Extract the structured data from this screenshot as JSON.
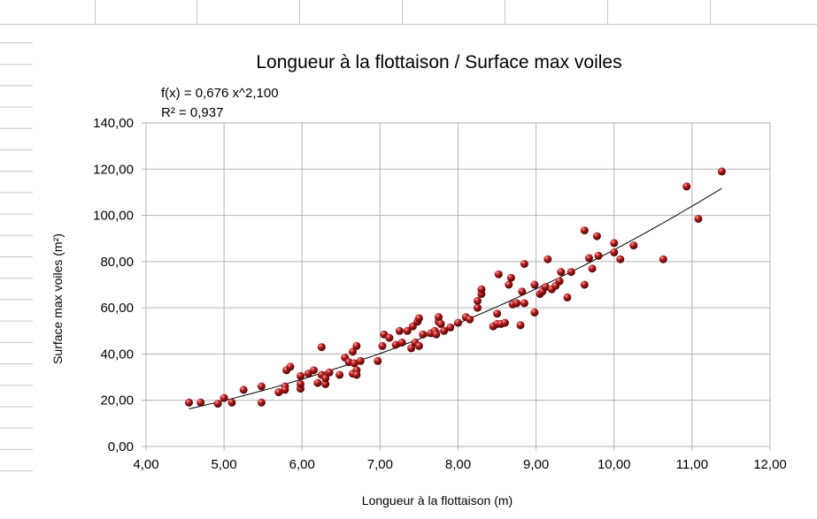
{
  "chart_data": {
    "type": "scatter",
    "title": "Longueur à la flottaison / Surface max voiles",
    "trendline": {
      "equation": "f(x) = 0,676 x^2,100",
      "r_squared": "R² = 0,937",
      "a": 0.676,
      "b": 2.1
    },
    "xlabel": "Longueur à la flottaison (m)",
    "ylabel": "Surface max voiles (m²)",
    "xlim": [
      4,
      12
    ],
    "ylim": [
      0,
      140
    ],
    "x_ticks": [
      "4,00",
      "5,00",
      "6,00",
      "7,00",
      "8,00",
      "9,00",
      "10,00",
      "11,00",
      "12,00"
    ],
    "y_ticks": [
      "0,00",
      "20,00",
      "40,00",
      "60,00",
      "80,00",
      "100,00",
      "120,00",
      "140,00"
    ],
    "grid": true,
    "point_color": "#b01818",
    "trend_color": "#000000",
    "points": [
      [
        4.55,
        19
      ],
      [
        4.7,
        19
      ],
      [
        4.92,
        18.5
      ],
      [
        5.0,
        21
      ],
      [
        5.1,
        19
      ],
      [
        5.25,
        24.5
      ],
      [
        5.48,
        19
      ],
      [
        5.48,
        26
      ],
      [
        5.7,
        23.5
      ],
      [
        5.78,
        26
      ],
      [
        5.78,
        24.5
      ],
      [
        5.8,
        33
      ],
      [
        5.85,
        34.5
      ],
      [
        5.98,
        25
      ],
      [
        5.98,
        27
      ],
      [
        5.98,
        30.5
      ],
      [
        6.08,
        31.5
      ],
      [
        6.15,
        33
      ],
      [
        6.2,
        27.5
      ],
      [
        6.25,
        43
      ],
      [
        6.25,
        31
      ],
      [
        6.3,
        27
      ],
      [
        6.3,
        29.5
      ],
      [
        6.35,
        32
      ],
      [
        6.48,
        31
      ],
      [
        6.55,
        38.5
      ],
      [
        6.6,
        36.5
      ],
      [
        6.65,
        41
      ],
      [
        6.65,
        31.5
      ],
      [
        6.67,
        36
      ],
      [
        6.7,
        33
      ],
      [
        6.7,
        43.5
      ],
      [
        6.75,
        37
      ],
      [
        6.7,
        31
      ],
      [
        6.97,
        37
      ],
      [
        7.03,
        43.5
      ],
      [
        7.05,
        48.5
      ],
      [
        7.12,
        47
      ],
      [
        7.2,
        44
      ],
      [
        7.25,
        50
      ],
      [
        7.28,
        45
      ],
      [
        7.35,
        50
      ],
      [
        7.4,
        42.5
      ],
      [
        7.42,
        52
      ],
      [
        7.45,
        45
      ],
      [
        7.48,
        54
      ],
      [
        7.5,
        43.5
      ],
      [
        7.5,
        55.5
      ],
      [
        7.55,
        48.5
      ],
      [
        7.65,
        49
      ],
      [
        7.7,
        50
      ],
      [
        7.72,
        48.5
      ],
      [
        7.75,
        54
      ],
      [
        7.75,
        56
      ],
      [
        7.78,
        53
      ],
      [
        7.82,
        50
      ],
      [
        7.9,
        51.5
      ],
      [
        8.0,
        53.5
      ],
      [
        8.1,
        56
      ],
      [
        8.15,
        55
      ],
      [
        8.25,
        60
      ],
      [
        8.25,
        63
      ],
      [
        8.3,
        66
      ],
      [
        8.3,
        68
      ],
      [
        8.45,
        52
      ],
      [
        8.5,
        57.5
      ],
      [
        8.5,
        53
      ],
      [
        8.52,
        74.5
      ],
      [
        8.55,
        53
      ],
      [
        8.6,
        53.5
      ],
      [
        8.65,
        70
      ],
      [
        8.68,
        73
      ],
      [
        8.7,
        61.5
      ],
      [
        8.75,
        62
      ],
      [
        8.8,
        52.5
      ],
      [
        8.82,
        67
      ],
      [
        8.85,
        79
      ],
      [
        8.85,
        62
      ],
      [
        8.98,
        70
      ],
      [
        8.98,
        58
      ],
      [
        9.05,
        66
      ],
      [
        9.08,
        67
      ],
      [
        9.12,
        69
      ],
      [
        9.15,
        81
      ],
      [
        9.2,
        68
      ],
      [
        9.25,
        69.5
      ],
      [
        9.3,
        71.5
      ],
      [
        9.32,
        75.5
      ],
      [
        9.4,
        64.5
      ],
      [
        9.45,
        75.5
      ],
      [
        9.62,
        93.5
      ],
      [
        9.62,
        70
      ],
      [
        9.68,
        81.5
      ],
      [
        9.72,
        77
      ],
      [
        9.78,
        91
      ],
      [
        9.8,
        82.5
      ],
      [
        10.0,
        84
      ],
      [
        10.0,
        88
      ],
      [
        10.08,
        81
      ],
      [
        10.25,
        87
      ],
      [
        10.63,
        81
      ],
      [
        10.93,
        112.5
      ],
      [
        11.08,
        98.5
      ],
      [
        11.38,
        119
      ]
    ]
  }
}
